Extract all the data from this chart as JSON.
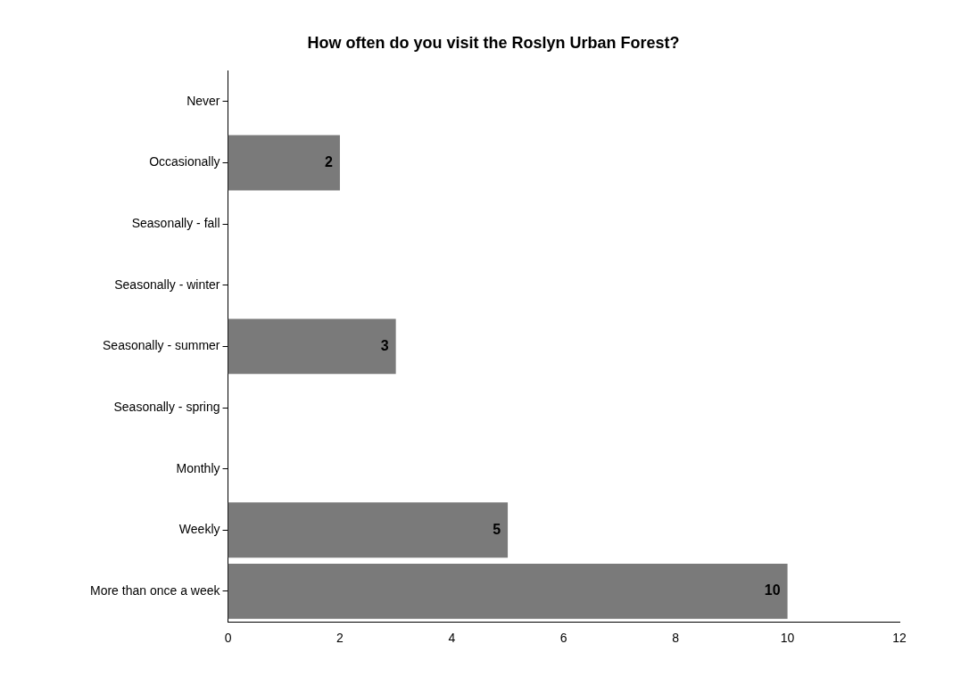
{
  "chart_data": {
    "type": "bar",
    "orientation": "horizontal",
    "title": "How often do you visit the Roslyn Urban Forest?",
    "categories": [
      "Never",
      "Occasionally",
      "Seasonally - fall",
      "Seasonally - winter",
      "Seasonally - summer",
      "Seasonally - spring",
      "Monthly",
      "Weekly",
      "More than once a week"
    ],
    "values": [
      0,
      2,
      0,
      0,
      3,
      0,
      0,
      5,
      10
    ],
    "value_labels": [
      null,
      "2",
      null,
      null,
      "3",
      null,
      null,
      "5",
      "10"
    ],
    "color": "#7a7a7a",
    "xlim": [
      0,
      12
    ],
    "xticks": [
      0,
      2,
      4,
      6,
      8,
      10,
      12
    ],
    "grid": false,
    "legend": false
  }
}
